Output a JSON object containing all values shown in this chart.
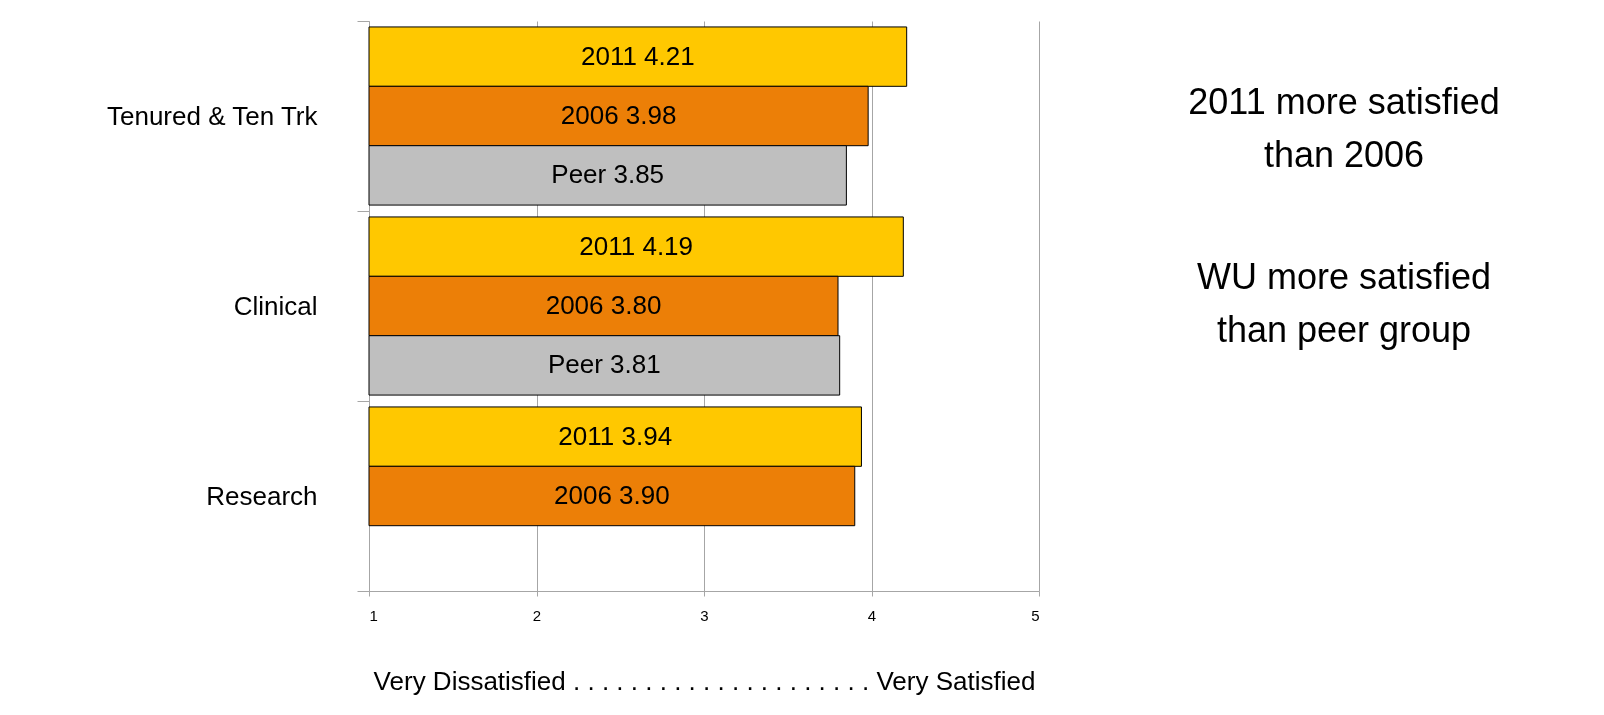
{
  "chart_data": {
    "type": "bar",
    "orientation": "horizontal",
    "categories": [
      "Tenured & Ten Trk",
      "Clinical",
      "Research"
    ],
    "series": [
      {
        "color": "#ffc800",
        "values": [
          4.21,
          4.19,
          3.94
        ],
        "value_labels": [
          "2011 4.21",
          "2011 4.19",
          "2011 3.94"
        ]
      },
      {
        "color": "#ec7f07",
        "values": [
          3.98,
          3.8,
          3.9
        ],
        "value_labels": [
          "2006 3.98",
          "2006 3.80",
          "2006 3.90"
        ]
      },
      {
        "color": "#bfbfbf",
        "values": [
          3.85,
          3.81,
          null
        ],
        "value_labels": [
          "Peer 3.85",
          "Peer 3.81",
          null
        ]
      }
    ],
    "xlim": [
      1,
      5
    ],
    "xticks": [
      1,
      2,
      3,
      4,
      5
    ],
    "grid": "x",
    "xlabel": "Very Dissatisfied . . . . . . . . . . . . . . . . . . . . . Very Satisfied",
    "annotations": [
      "2011 more satisfied\nthan 2006",
      "WU more satisfied\nthan peer group"
    ]
  }
}
